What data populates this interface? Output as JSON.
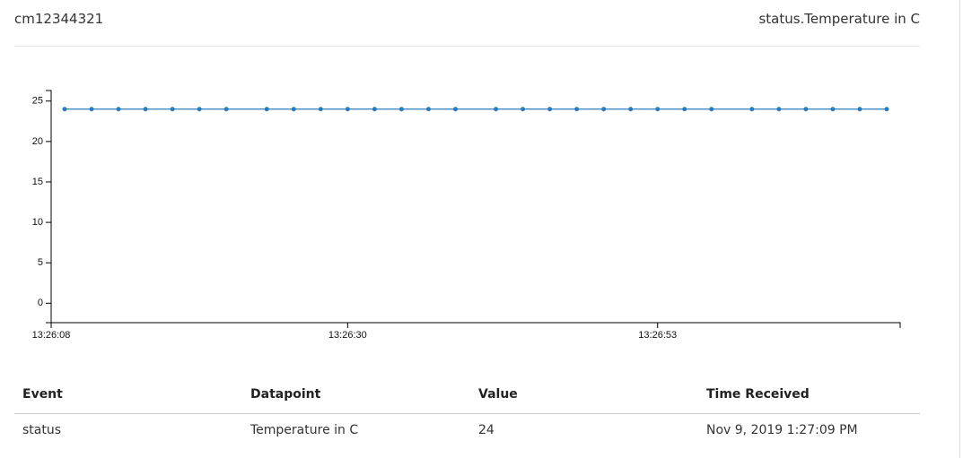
{
  "header": {
    "device": "cm12344321",
    "metric": "status.Temperature in C"
  },
  "chart_data": {
    "type": "line",
    "x": [
      "13:26:09",
      "13:26:11",
      "13:26:13",
      "13:26:15",
      "13:26:17",
      "13:26:19",
      "13:26:21",
      "13:26:24",
      "13:26:26",
      "13:26:28",
      "13:26:30",
      "13:26:32",
      "13:26:34",
      "13:26:36",
      "13:26:38",
      "13:26:41",
      "13:26:43",
      "13:26:45",
      "13:26:47",
      "13:26:49",
      "13:26:51",
      "13:26:53",
      "13:26:55",
      "13:26:57",
      "13:27:00",
      "13:27:02",
      "13:27:04",
      "13:27:06",
      "13:27:08",
      "13:27:10"
    ],
    "series": [
      {
        "name": "Temperature in C",
        "color": "#2b7bb9",
        "values": [
          24,
          24,
          24,
          24,
          24,
          24,
          24,
          24,
          24,
          24,
          24,
          24,
          24,
          24,
          24,
          24,
          24,
          24,
          24,
          24,
          24,
          24,
          24,
          24,
          24,
          24,
          24,
          24,
          24,
          24
        ]
      }
    ],
    "xlim": [
      "13:26:08",
      "13:27:11"
    ],
    "xticks": [
      "13:26:08",
      "13:26:30",
      "13:26:53"
    ],
    "ylim": [
      -2.4,
      26.3
    ],
    "yticks": [
      0,
      5,
      10,
      15,
      20,
      25
    ]
  },
  "table": {
    "columns": [
      "Event",
      "Datapoint",
      "Value",
      "Time Received"
    ],
    "rows": [
      [
        "status",
        "Temperature in C",
        "24",
        "Nov 9, 2019 1:27:09 PM"
      ]
    ]
  }
}
